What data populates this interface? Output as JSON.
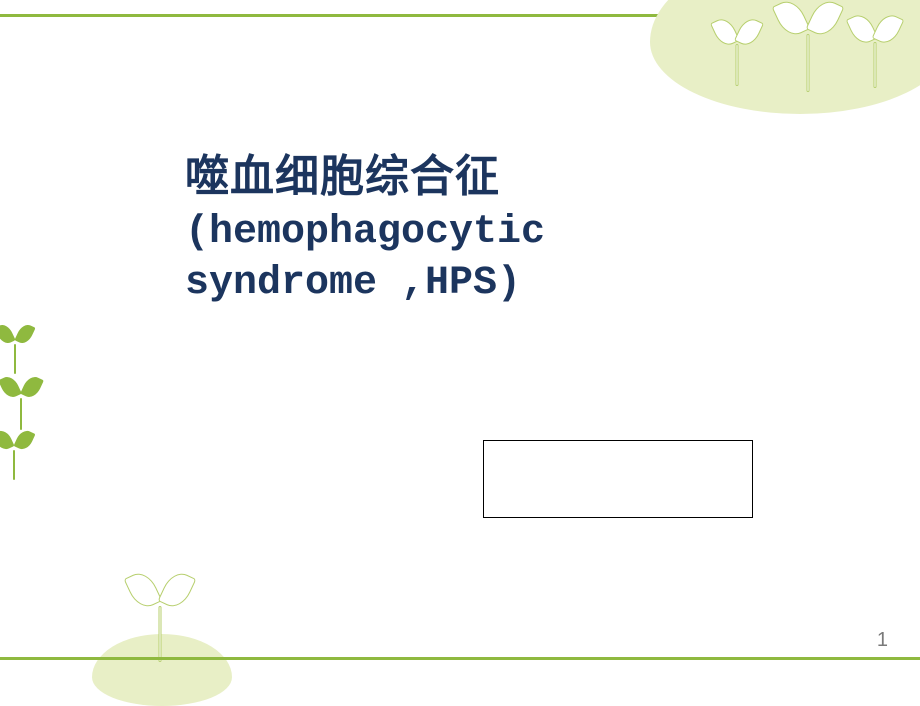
{
  "title": {
    "line1": "噬血细胞综合征",
    "line2": "(hemophagocytic",
    "line3": " syndrome ,HPS)",
    "color": "#1c355e"
  },
  "box": {
    "content": ""
  },
  "page_number": "1",
  "theme": {
    "accent_green": "#8fb93f",
    "soft_green": "#e8efc6",
    "outline_green": "#b7cf6e",
    "background": "#ffffff"
  }
}
